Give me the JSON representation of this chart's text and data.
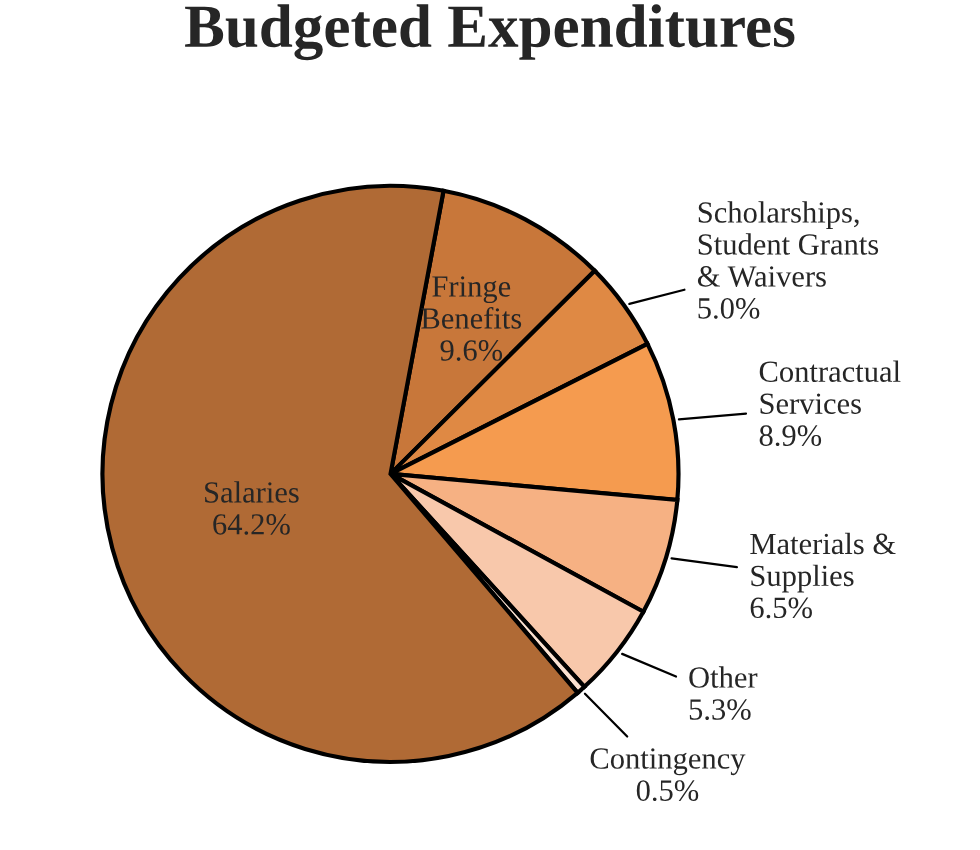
{
  "chart_data": {
    "type": "pie",
    "title": "Budgeted Expenditures",
    "categories": [
      "Fringe\nBenefits",
      "Scholarships,\nStudent Grants\n& Waivers",
      "Contractual\nServices",
      "Materials &\nSupplies",
      "Other",
      "Contingency",
      "Salaries"
    ],
    "values": [
      9.6,
      5.0,
      8.9,
      6.5,
      5.3,
      0.5,
      64.2
    ],
    "value_labels": [
      "9.6%",
      "5.0%",
      "8.9%",
      "6.5%",
      "5.3%",
      "0.5%",
      "64.2%"
    ],
    "colors": [
      "#c8773a",
      "#df8944",
      "#f59b4f",
      "#f6b183",
      "#f8c8ab",
      "#fbe1d0",
      "#b06a35"
    ]
  }
}
